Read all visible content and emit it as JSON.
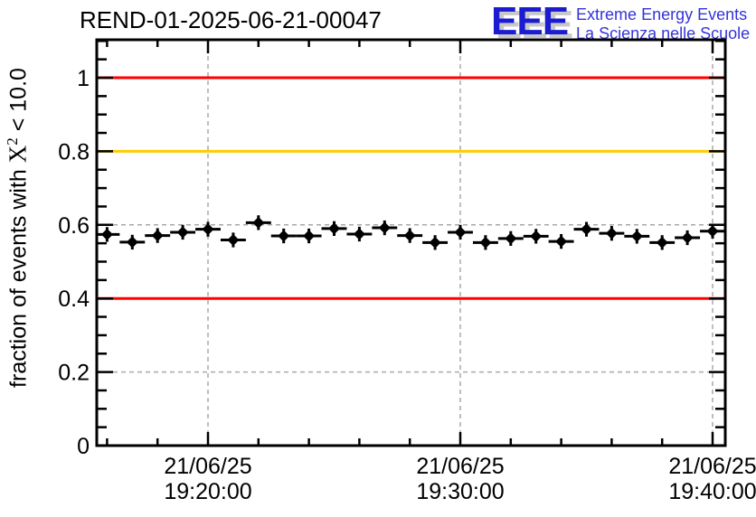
{
  "page": {
    "background": "#ffffff"
  },
  "header": {
    "title": "REND-01-2025-06-21-00047",
    "logo": {
      "letters": "EEE",
      "line1": "Extreme Energy Events",
      "line2": "La Scienza nelle Scuole",
      "letter_color": "#1b1bd1",
      "text_color": "#3434d8",
      "shadow_color": "#c8c8c8"
    }
  },
  "chart_data": {
    "type": "scatter",
    "title": "REND-01-2025-06-21-00047",
    "ylabel_pre": "fraction of events with ",
    "ylabel_sym": "X",
    "ylabel_sup": "2",
    "ylabel_post": " < 10.0",
    "ylabel_plain": "fraction of events with X^2 < 10.0",
    "date_label": "21/06/25",
    "x_times": [
      "19:16",
      "19:17",
      "19:18",
      "19:19",
      "19:20",
      "19:21",
      "19:22",
      "19:23",
      "19:24",
      "19:25",
      "19:26",
      "19:27",
      "19:28",
      "19:29",
      "19:30",
      "19:31",
      "19:32",
      "19:33",
      "19:34",
      "19:35",
      "19:36",
      "19:37",
      "19:38",
      "19:39",
      "19:40"
    ],
    "y_values": [
      0.574,
      0.553,
      0.571,
      0.58,
      0.588,
      0.559,
      0.606,
      0.57,
      0.57,
      0.59,
      0.575,
      0.592,
      0.571,
      0.552,
      0.58,
      0.552,
      0.563,
      0.569,
      0.555,
      0.588,
      0.577,
      0.569,
      0.552,
      0.565,
      0.583
    ],
    "x_bin_halfwidth_minutes": 0.5,
    "y_error_approx": 0.02,
    "x_major_ticks": [
      {
        "date": "21/06/25",
        "time": "19:20:00"
      },
      {
        "date": "21/06/25",
        "time": "19:30:00"
      },
      {
        "date": "21/06/25",
        "time": "19:40:00"
      }
    ],
    "x_minor_step_minutes": 2,
    "y_major_ticks": [
      {
        "value": 0.0,
        "label": "0"
      },
      {
        "value": 0.2,
        "label": "0.2"
      },
      {
        "value": 0.4,
        "label": "0.4"
      },
      {
        "value": 0.6,
        "label": "0.6"
      },
      {
        "value": 0.8,
        "label": "0.8"
      },
      {
        "value": 1.0,
        "label": "1"
      }
    ],
    "y_minor_step": 0.05,
    "ylim": [
      0,
      1.103
    ],
    "xlim_times": [
      "19:15:36",
      "19:40:30"
    ],
    "grid": true,
    "legend": false,
    "reference_lines": [
      {
        "value": 1.0,
        "color": "#ff0000"
      },
      {
        "value": 0.8,
        "color": "#ffcc00"
      },
      {
        "value": 0.4,
        "color": "#ff0000"
      }
    ],
    "marker": {
      "shape": "diamond",
      "color": "#000000"
    },
    "axis_color": "#000000",
    "grid_color": "#a8a8a8"
  }
}
